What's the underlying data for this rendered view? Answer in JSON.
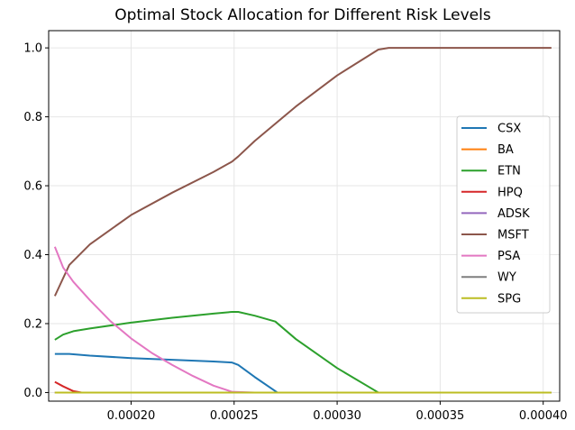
{
  "chart_data": {
    "type": "line",
    "title": "Optimal Stock Allocation for Different Risk Levels",
    "xlabel": "",
    "ylabel": "",
    "xlim": [
      0.00016,
      0.000408
    ],
    "ylim": [
      -0.025,
      1.05
    ],
    "grid": true,
    "legend_position": "center-right",
    "x_ticks": [
      0.0002,
      0.00025,
      0.0003,
      0.00035,
      0.0004
    ],
    "x_tick_labels": [
      "0.00020",
      "0.00025",
      "0.00030",
      "0.00035",
      "0.00040"
    ],
    "y_ticks": [
      0.0,
      0.2,
      0.4,
      0.6,
      0.8,
      1.0
    ],
    "y_tick_labels": [
      "0.0",
      "0.2",
      "0.4",
      "0.6",
      "0.8",
      "1.0"
    ],
    "series": [
      {
        "name": "CSX",
        "color": "#1f77b4",
        "x": [
          0.000163,
          0.00017,
          0.00018,
          0.0002,
          0.00022,
          0.00024,
          0.000249,
          0.000252,
          0.00026,
          0.000271,
          0.0003,
          0.00035,
          0.000404
        ],
        "y": [
          0.112,
          0.112,
          0.107,
          0.1,
          0.095,
          0.09,
          0.087,
          0.08,
          0.045,
          0.0,
          0.0,
          0.0,
          0.0
        ]
      },
      {
        "name": "BA",
        "color": "#ff7f0e",
        "x": [
          0.000163,
          0.000404
        ],
        "y": [
          0.0,
          0.0
        ]
      },
      {
        "name": "ETN",
        "color": "#2ca02c",
        "x": [
          0.000163,
          0.000167,
          0.000172,
          0.00018,
          0.0002,
          0.00022,
          0.00024,
          0.000249,
          0.000252,
          0.00026,
          0.00027,
          0.00028,
          0.0003,
          0.00032,
          0.00035,
          0.000404
        ],
        "y": [
          0.153,
          0.168,
          0.178,
          0.186,
          0.203,
          0.217,
          0.229,
          0.234,
          0.234,
          0.223,
          0.206,
          0.155,
          0.071,
          0.0,
          0.0,
          0.0
        ]
      },
      {
        "name": "HPQ",
        "color": "#d62728",
        "x": [
          0.000163,
          0.000167,
          0.000172,
          0.000176,
          0.0002,
          0.000404
        ],
        "y": [
          0.031,
          0.018,
          0.004,
          0.0,
          0.0,
          0.0
        ]
      },
      {
        "name": "ADSK",
        "color": "#9467bd",
        "x": [
          0.000163,
          0.000404
        ],
        "y": [
          0.0,
          0.0
        ]
      },
      {
        "name": "MSFT",
        "color": "#8c564b",
        "x": [
          0.000163,
          0.00017,
          0.00018,
          0.0002,
          0.00022,
          0.00024,
          0.000249,
          0.000252,
          0.00026,
          0.00028,
          0.0003,
          0.00032,
          0.000325,
          0.00035,
          0.000404
        ],
        "y": [
          0.28,
          0.37,
          0.43,
          0.515,
          0.58,
          0.64,
          0.67,
          0.685,
          0.73,
          0.83,
          0.92,
          0.995,
          1.0,
          1.0,
          1.0
        ]
      },
      {
        "name": "PSA",
        "color": "#e377c2",
        "x": [
          0.000163,
          0.000167,
          0.000172,
          0.00018,
          0.00019,
          0.0002,
          0.00021,
          0.00022,
          0.00023,
          0.00024,
          0.000249,
          0.00026,
          0.0003,
          0.000404
        ],
        "y": [
          0.423,
          0.363,
          0.321,
          0.268,
          0.207,
          0.157,
          0.115,
          0.08,
          0.048,
          0.02,
          0.002,
          0.0,
          0.0,
          0.0
        ]
      },
      {
        "name": "WY",
        "color": "#7f7f7f",
        "x": [
          0.000163,
          0.000404
        ],
        "y": [
          0.0,
          0.0
        ]
      },
      {
        "name": "SPG",
        "color": "#bcbd22",
        "x": [
          0.000163,
          0.000404
        ],
        "y": [
          0.0,
          0.0
        ]
      }
    ]
  }
}
